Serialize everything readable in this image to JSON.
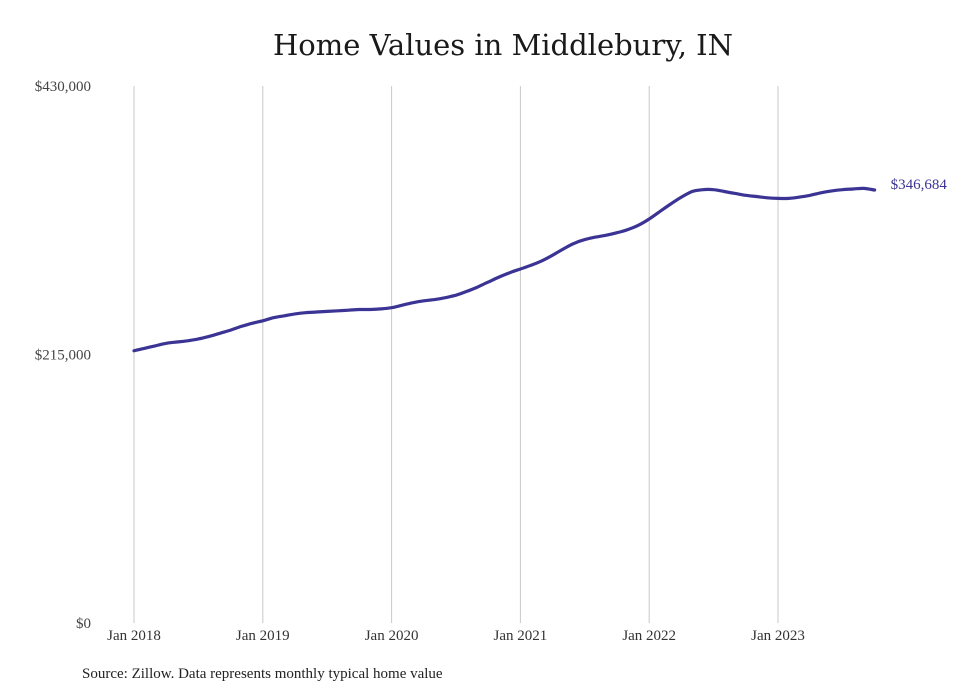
{
  "title": "Home Values in Middlebury, IN",
  "source": "Source: Zillow. Data represents monthly typical home value",
  "colors": {
    "line": "#3b3494",
    "grid": "#c8c8c8",
    "end_label": "#3b3494"
  },
  "chart_data": {
    "type": "line",
    "title": "Home Values in Middlebury, IN",
    "xlabel": "",
    "ylabel": "",
    "ylim": [
      0,
      430000
    ],
    "y_ticks": [
      0,
      215000,
      430000
    ],
    "y_tick_labels": [
      "$0",
      "$215,000",
      "$430,000"
    ],
    "x_ticks": [
      "2018-01",
      "2019-01",
      "2020-01",
      "2021-01",
      "2022-01",
      "2023-01"
    ],
    "x_tick_labels": [
      "Jan 2018",
      "Jan 2019",
      "Jan 2020",
      "Jan 2021",
      "Jan 2022",
      "Jan 2023"
    ],
    "grid": "vertical",
    "end_label": "$346,684",
    "series": [
      {
        "values_by_month": [
          [
            "2018-01",
            218000
          ],
          [
            "2018-02",
            220000
          ],
          [
            "2018-03",
            222000
          ],
          [
            "2018-04",
            224000
          ],
          [
            "2018-05",
            225000
          ],
          [
            "2018-06",
            226000
          ],
          [
            "2018-07",
            227500
          ],
          [
            "2018-08",
            229500
          ],
          [
            "2018-09",
            232000
          ],
          [
            "2018-10",
            234500
          ],
          [
            "2018-11",
            237500
          ],
          [
            "2018-12",
            240000
          ],
          [
            "2019-01",
            242000
          ],
          [
            "2019-02",
            244500
          ],
          [
            "2019-03",
            246000
          ],
          [
            "2019-04",
            247500
          ],
          [
            "2019-05",
            248500
          ],
          [
            "2019-06",
            249000
          ],
          [
            "2019-07",
            249500
          ],
          [
            "2019-08",
            250000
          ],
          [
            "2019-09",
            250500
          ],
          [
            "2019-10",
            251000
          ],
          [
            "2019-11",
            251000
          ],
          [
            "2019-12",
            251500
          ],
          [
            "2020-01",
            252500
          ],
          [
            "2020-02",
            254500
          ],
          [
            "2020-03",
            256500
          ],
          [
            "2020-04",
            258000
          ],
          [
            "2020-05",
            259000
          ],
          [
            "2020-06",
            260500
          ],
          [
            "2020-07",
            262500
          ],
          [
            "2020-08",
            265500
          ],
          [
            "2020-09",
            269000
          ],
          [
            "2020-10",
            273000
          ],
          [
            "2020-11",
            277000
          ],
          [
            "2020-12",
            280500
          ],
          [
            "2021-01",
            283500
          ],
          [
            "2021-02",
            286500
          ],
          [
            "2021-03",
            290000
          ],
          [
            "2021-04",
            294500
          ],
          [
            "2021-05",
            299500
          ],
          [
            "2021-06",
            304000
          ],
          [
            "2021-07",
            307000
          ],
          [
            "2021-08",
            309000
          ],
          [
            "2021-09",
            310500
          ],
          [
            "2021-10",
            312500
          ],
          [
            "2021-11",
            315000
          ],
          [
            "2021-12",
            318500
          ],
          [
            "2022-01",
            323500
          ],
          [
            "2022-02",
            329500
          ],
          [
            "2022-03",
            335500
          ],
          [
            "2022-04",
            341000
          ],
          [
            "2022-05",
            345500
          ],
          [
            "2022-06",
            347000
          ],
          [
            "2022-07",
            347000
          ],
          [
            "2022-08",
            345500
          ],
          [
            "2022-09",
            344000
          ],
          [
            "2022-10",
            342500
          ],
          [
            "2022-11",
            341500
          ],
          [
            "2022-12",
            340500
          ],
          [
            "2023-01",
            340000
          ],
          [
            "2023-02",
            340000
          ],
          [
            "2023-03",
            341000
          ],
          [
            "2023-04",
            342500
          ],
          [
            "2023-05",
            344500
          ],
          [
            "2023-06",
            346000
          ],
          [
            "2023-07",
            347000
          ],
          [
            "2023-08",
            347500
          ],
          [
            "2023-09",
            348000
          ],
          [
            "2023-10",
            346684
          ]
        ]
      }
    ]
  }
}
